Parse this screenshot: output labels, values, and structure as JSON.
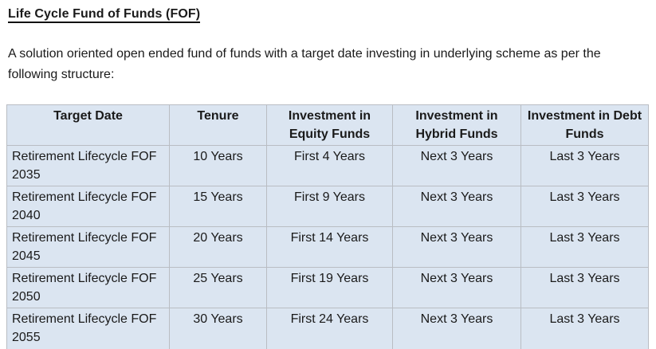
{
  "page": {
    "title": "Life Cycle Fund of Funds (FOF)",
    "intro": "A solution oriented open ended fund of funds with a target date investing in underlying scheme as per the following structure:"
  },
  "table": {
    "headers": [
      "Target Date",
      "Tenure",
      "Investment in Equity Funds",
      "Investment in Hybrid Funds",
      "Investment in Debt Funds"
    ],
    "rows": [
      [
        "Retirement Lifecycle FOF 2035",
        "10 Years",
        "First 4 Years",
        "Next 3 Years",
        "Last 3 Years"
      ],
      [
        "Retirement Lifecycle FOF 2040",
        "15 Years",
        "First 9 Years",
        "Next 3 Years",
        "Last 3 Years"
      ],
      [
        "Retirement Lifecycle FOF 2045",
        "20 Years",
        "First 14 Years",
        "Next 3 Years",
        "Last 3 Years"
      ],
      [
        "Retirement Lifecycle FOF 2050",
        "25 Years",
        "First 19 Years",
        "Next 3 Years",
        "Last 3 Years"
      ],
      [
        "Retirement Lifecycle FOF 2055",
        "30 Years",
        "First 24 Years",
        "Next 3 Years",
        "Last 3 Years"
      ]
    ]
  },
  "colors": {
    "cell_background": "#dbe5f1",
    "table_border": "#b9bdc3",
    "text": "#1a1a1a"
  }
}
